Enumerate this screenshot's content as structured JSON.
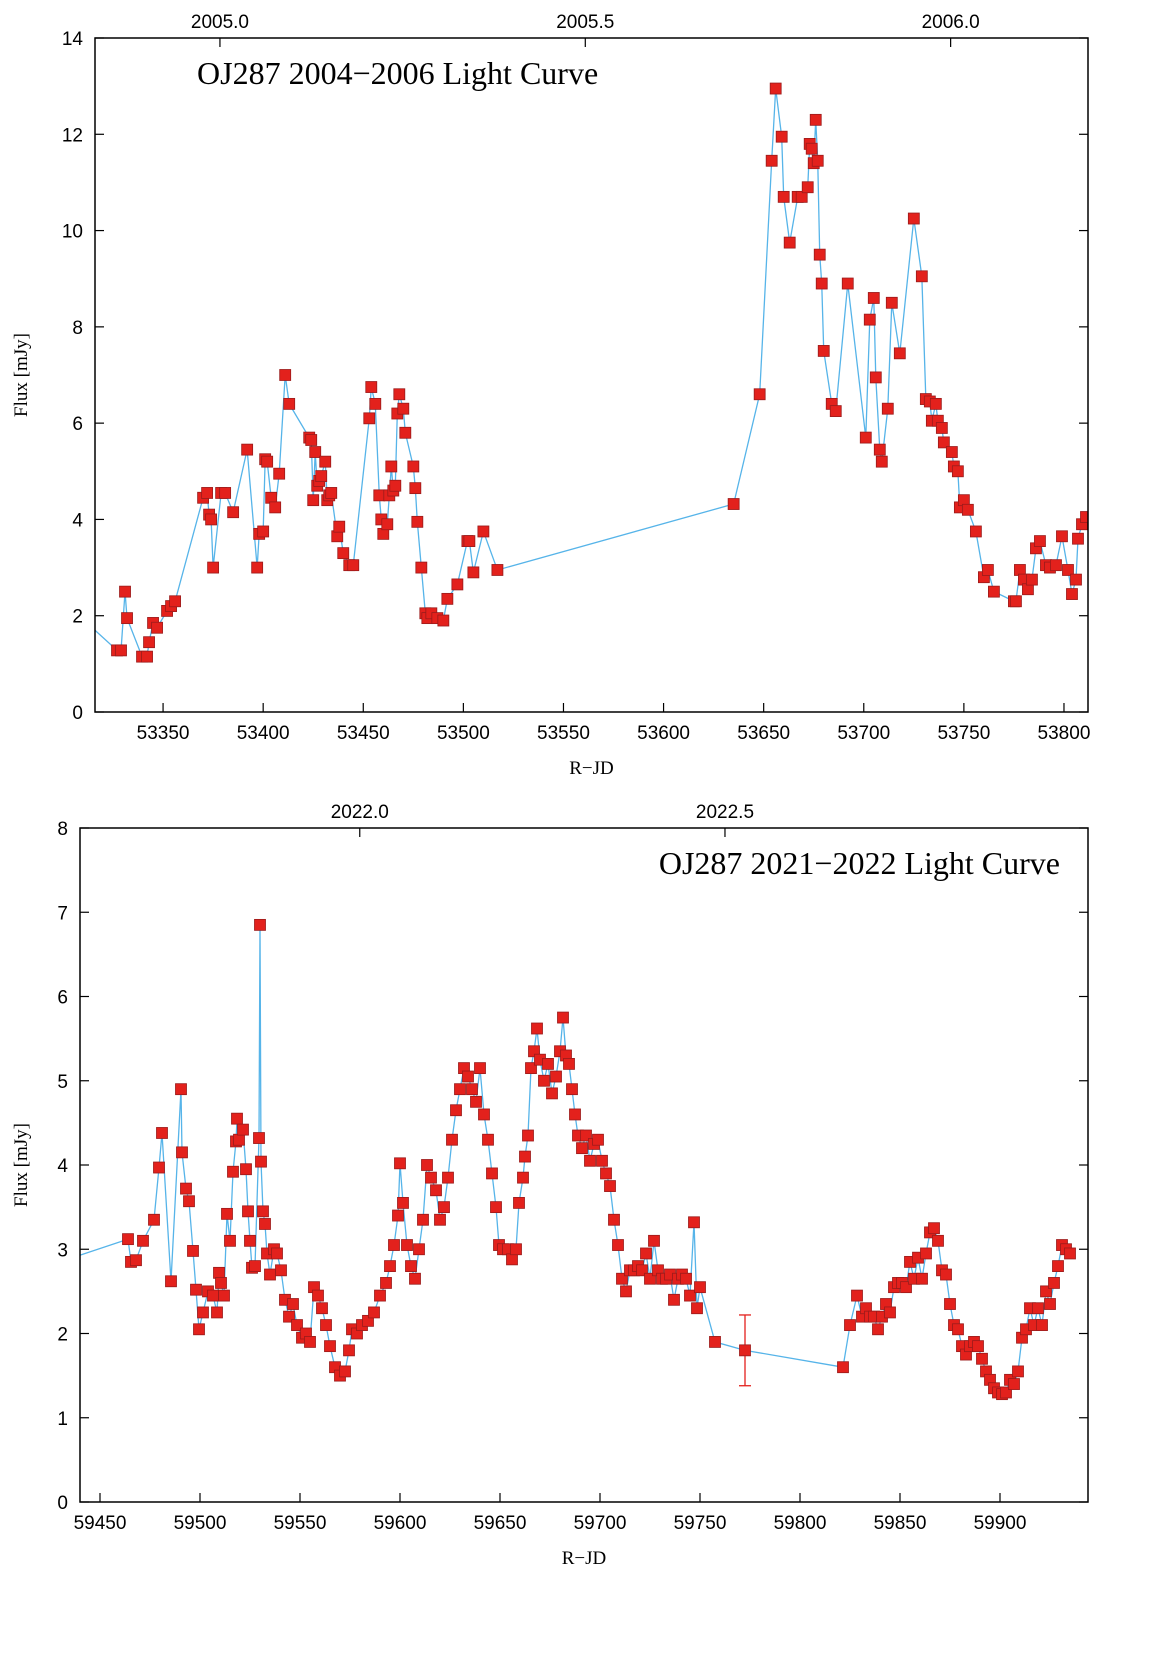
{
  "chart_data": [
    {
      "type": "line",
      "title": "OJ287 2004−2006 Light Curve",
      "title_position": "top-left",
      "xlabel": "R−JD",
      "ylabel": "Flux [mJy]",
      "line_color": "#56b4e9",
      "marker_color": "#e3211c",
      "xlim": [
        53316,
        53812
      ],
      "ylim": [
        0,
        14
      ],
      "xticks": [
        53350,
        53400,
        53450,
        53500,
        53550,
        53600,
        53650,
        53700,
        53750,
        53800
      ],
      "yticks": [
        0,
        2,
        4,
        6,
        8,
        10,
        12,
        14
      ],
      "x2lim": [
        2004.829,
        2006.188
      ],
      "x2ticks": [
        {
          "value": 2005,
          "label": "2005.0"
        },
        {
          "value": 2005.5,
          "label": "2005.5"
        },
        {
          "value": 2006,
          "label": "2006.0"
        }
      ],
      "x": [
        53312,
        53327,
        53329,
        53331,
        53332,
        53339.5,
        53342,
        53343,
        53345,
        53347,
        53352,
        53354,
        53356,
        53370,
        53372,
        53373,
        53374,
        53375,
        53379,
        53381,
        53385,
        53392,
        53397,
        53398,
        53400,
        53401,
        53402,
        53404,
        53406,
        53408,
        53411,
        53413,
        53423,
        53424,
        53425,
        53426,
        53427,
        53428,
        53429,
        53431,
        53432,
        53433,
        53434,
        53437,
        53438,
        53440,
        53443,
        53445,
        53453,
        53454,
        53456,
        53458,
        53459,
        53460,
        53462,
        53463,
        53464,
        53465,
        53466,
        53467,
        53468,
        53470,
        53471,
        53475,
        53476,
        53477,
        53479,
        53481,
        53482,
        53484,
        53487,
        53490,
        53492,
        53497,
        53502,
        53503,
        53505,
        53510,
        53517,
        53635,
        53648,
        53654,
        53656,
        53659,
        53660,
        53663,
        53667,
        53669,
        53672,
        53673,
        53674,
        53675,
        53676,
        53677,
        53678,
        53679,
        53680,
        53684,
        53686,
        53692,
        53701,
        53703,
        53705,
        53706,
        53708,
        53709,
        53712,
        53714,
        53718,
        53725,
        53729,
        53731,
        53733,
        53734,
        53736,
        53737,
        53739,
        53740,
        53744,
        53745,
        53747,
        53748,
        53750,
        53752,
        53756,
        53760,
        53762,
        53765,
        53775,
        53776,
        53778,
        53780,
        53782,
        53784,
        53786,
        53788,
        53791,
        53793,
        53796,
        53799,
        53802,
        53804,
        53806,
        53807,
        53809,
        53811
      ],
      "values": [
        1.85,
        1.28,
        1.28,
        2.5,
        1.95,
        1.15,
        1.15,
        1.45,
        1.85,
        1.75,
        2.1,
        2.2,
        2.3,
        4.45,
        4.55,
        4.1,
        4.0,
        3.0,
        4.55,
        4.55,
        4.15,
        5.45,
        3.0,
        3.7,
        3.75,
        5.25,
        5.2,
        4.45,
        4.25,
        4.95,
        7.0,
        6.4,
        5.7,
        5.65,
        4.4,
        5.4,
        4.7,
        4.8,
        4.9,
        5.2,
        4.4,
        4.5,
        4.55,
        3.65,
        3.85,
        3.3,
        3.05,
        3.05,
        6.1,
        6.75,
        6.4,
        4.5,
        4.0,
        3.7,
        3.9,
        4.5,
        5.1,
        4.6,
        4.7,
        6.2,
        6.6,
        6.3,
        5.8,
        5.1,
        4.65,
        3.95,
        3.0,
        2.05,
        1.95,
        2.05,
        1.95,
        1.9,
        2.35,
        2.65,
        3.55,
        3.55,
        2.9,
        3.75,
        2.95,
        4.32,
        6.6,
        11.45,
        12.95,
        11.95,
        10.7,
        9.75,
        10.7,
        10.7,
        10.9,
        11.8,
        11.7,
        11.4,
        12.3,
        11.45,
        9.5,
        8.9,
        7.5,
        6.4,
        6.25,
        8.9,
        5.7,
        8.15,
        8.6,
        6.95,
        5.45,
        5.2,
        6.3,
        8.5,
        7.45,
        10.25,
        9.05,
        6.5,
        6.45,
        6.05,
        6.4,
        6.05,
        5.9,
        5.6,
        5.4,
        5.1,
        5.0,
        4.25,
        4.4,
        4.2,
        3.75,
        2.8,
        2.95,
        2.5,
        2.3,
        2.3,
        2.95,
        2.75,
        2.55,
        2.75,
        3.4,
        3.55,
        3.05,
        3.0,
        3.05,
        3.65,
        2.95,
        2.45,
        2.75,
        3.6,
        3.9,
        4.05
      ]
    },
    {
      "type": "line",
      "title": "OJ287 2021−2022 Light Curve",
      "title_position": "top-right",
      "xlabel": "R−JD",
      "ylabel": "Flux [mJy]",
      "line_color": "#56b4e9",
      "marker_color": "#e3211c",
      "xlim": [
        59440,
        59944
      ],
      "ylim": [
        0,
        8
      ],
      "xticks": [
        59450,
        59500,
        59550,
        59600,
        59650,
        59700,
        59750,
        59800,
        59850,
        59900
      ],
      "yticks": [
        0,
        1,
        2,
        3,
        4,
        5,
        6,
        7,
        8
      ],
      "x2lim": [
        2021.617,
        2022.997
      ],
      "x2ticks": [
        {
          "value": 2022,
          "label": "2022.0"
        },
        {
          "value": 2022.5,
          "label": "2022.5"
        }
      ],
      "error_bars": [
        {
          "x": 59772.5,
          "value": 1.8,
          "error": 0.42
        }
      ],
      "x": [
        59430,
        59464,
        59465.5,
        59468,
        59471.5,
        59477,
        59479.5,
        59481,
        59485.5,
        59490.5,
        59491,
        59493,
        59494.5,
        59496.5,
        59498,
        59499.5,
        59501.5,
        59504,
        59506.5,
        59508.5,
        59509.5,
        59510.5,
        59512,
        59513.5,
        59515,
        59516.5,
        59518,
        59518.5,
        59519.5,
        59521.5,
        59523,
        59524,
        59525,
        59526,
        59527.5,
        59529.5,
        59530,
        59530.5,
        59531.5,
        59532.5,
        59533.5,
        59535,
        59537,
        59538.5,
        59540.5,
        59542.5,
        59544.5,
        59546.5,
        59548.5,
        59551,
        59553,
        59555,
        59557,
        59559,
        59561,
        59563,
        59565,
        59567.5,
        59570,
        59572.5,
        59574.5,
        59576,
        59578.5,
        59581,
        59584,
        59587,
        59590,
        59593,
        59595,
        59597,
        59599,
        59600,
        59601.5,
        59603.5,
        59605.5,
        59607.5,
        59609.5,
        59611.5,
        59613.5,
        59615.5,
        59618,
        59620,
        59622,
        59624,
        59626,
        59628,
        59630,
        59632,
        59634,
        59636,
        59638,
        59640,
        59642,
        59644,
        59646,
        59648,
        59649.5,
        59651.5,
        59654,
        59656,
        59658,
        59659.5,
        59661.5,
        59662.5,
        59664,
        59665.5,
        59667,
        59668.5,
        59670,
        59672,
        59674,
        59676,
        59678,
        59680,
        59681.5,
        59683,
        59684.5,
        59686,
        59687.5,
        59689,
        59691,
        59693,
        59695,
        59697,
        59699,
        59701,
        59703,
        59705,
        59707,
        59709,
        59711,
        59713,
        59715,
        59717,
        59719,
        59721,
        59723,
        59725,
        59727,
        59729,
        59731,
        59733,
        59735,
        59737,
        59739,
        59741,
        59743,
        59745,
        59747,
        59748.5,
        59750,
        59757.5,
        59772.5,
        59821.5,
        59825,
        59828.5,
        59831,
        59833,
        59835,
        59837,
        59839,
        59841,
        59843,
        59845,
        59847,
        59849,
        59851,
        59853,
        59855,
        59857,
        59859,
        59861,
        59863,
        59865,
        59867,
        59869,
        59871,
        59873,
        59875,
        59877,
        59879,
        59881,
        59883,
        59885,
        59887,
        59889,
        59891,
        59893,
        59895,
        59897,
        59899,
        59901,
        59903,
        59905,
        59907,
        59909,
        59911,
        59913,
        59915,
        59917,
        59919,
        59921,
        59923,
        59925,
        59927,
        59929,
        59931,
        59933,
        59935
      ],
      "values": [
        2.85,
        3.12,
        2.85,
        2.87,
        3.1,
        3.35,
        3.97,
        4.38,
        2.62,
        4.9,
        4.15,
        3.72,
        3.57,
        2.98,
        2.52,
        2.05,
        2.25,
        2.5,
        2.45,
        2.25,
        2.72,
        2.6,
        2.45,
        3.42,
        3.1,
        3.92,
        4.28,
        4.55,
        4.3,
        4.42,
        3.95,
        3.45,
        3.1,
        2.78,
        2.8,
        4.32,
        6.85,
        4.04,
        3.45,
        3.3,
        2.95,
        2.7,
        3.0,
        2.95,
        2.75,
        2.4,
        2.2,
        2.35,
        2.1,
        1.95,
        2.0,
        1.9,
        2.55,
        2.45,
        2.3,
        2.1,
        1.85,
        1.6,
        1.5,
        1.55,
        1.8,
        2.05,
        2.0,
        2.1,
        2.15,
        2.25,
        2.45,
        2.6,
        2.8,
        3.05,
        3.4,
        4.02,
        3.55,
        3.05,
        2.8,
        2.65,
        3.0,
        3.35,
        4.0,
        3.85,
        3.7,
        3.35,
        3.5,
        3.85,
        4.3,
        4.65,
        4.9,
        5.15,
        5.05,
        4.9,
        4.75,
        5.15,
        4.6,
        4.3,
        3.9,
        3.5,
        3.05,
        3.0,
        3.0,
        2.88,
        3.0,
        3.55,
        3.85,
        4.1,
        4.35,
        5.15,
        5.35,
        5.62,
        5.25,
        5.0,
        5.2,
        4.85,
        5.05,
        5.35,
        5.75,
        5.3,
        5.2,
        4.9,
        4.6,
        4.35,
        4.2,
        4.35,
        4.05,
        4.25,
        4.3,
        4.05,
        3.9,
        3.75,
        3.35,
        3.05,
        2.65,
        2.5,
        2.75,
        2.75,
        2.8,
        2.75,
        2.95,
        2.65,
        3.1,
        2.75,
        2.65,
        2.65,
        2.7,
        2.4,
        2.65,
        2.7,
        2.65,
        2.45,
        3.32,
        2.3,
        2.55,
        1.9,
        1.8,
        1.6,
        2.1,
        2.45,
        2.2,
        2.3,
        2.2,
        2.2,
        2.05,
        2.2,
        2.35,
        2.25,
        2.55,
        2.6,
        2.6,
        2.55,
        2.85,
        2.65,
        2.9,
        2.65,
        2.95,
        3.2,
        3.25,
        3.1,
        2.75,
        2.7,
        2.35,
        2.1,
        2.05,
        1.85,
        1.75,
        1.85,
        1.9,
        1.85,
        1.7,
        1.55,
        1.45,
        1.35,
        1.3,
        1.28,
        1.3,
        1.45,
        1.4,
        1.55,
        1.95,
        2.05,
        2.3,
        2.1,
        2.3,
        2.1,
        2.5,
        2.35,
        2.6,
        2.8,
        3.05,
        3.0,
        2.95
      ]
    }
  ]
}
